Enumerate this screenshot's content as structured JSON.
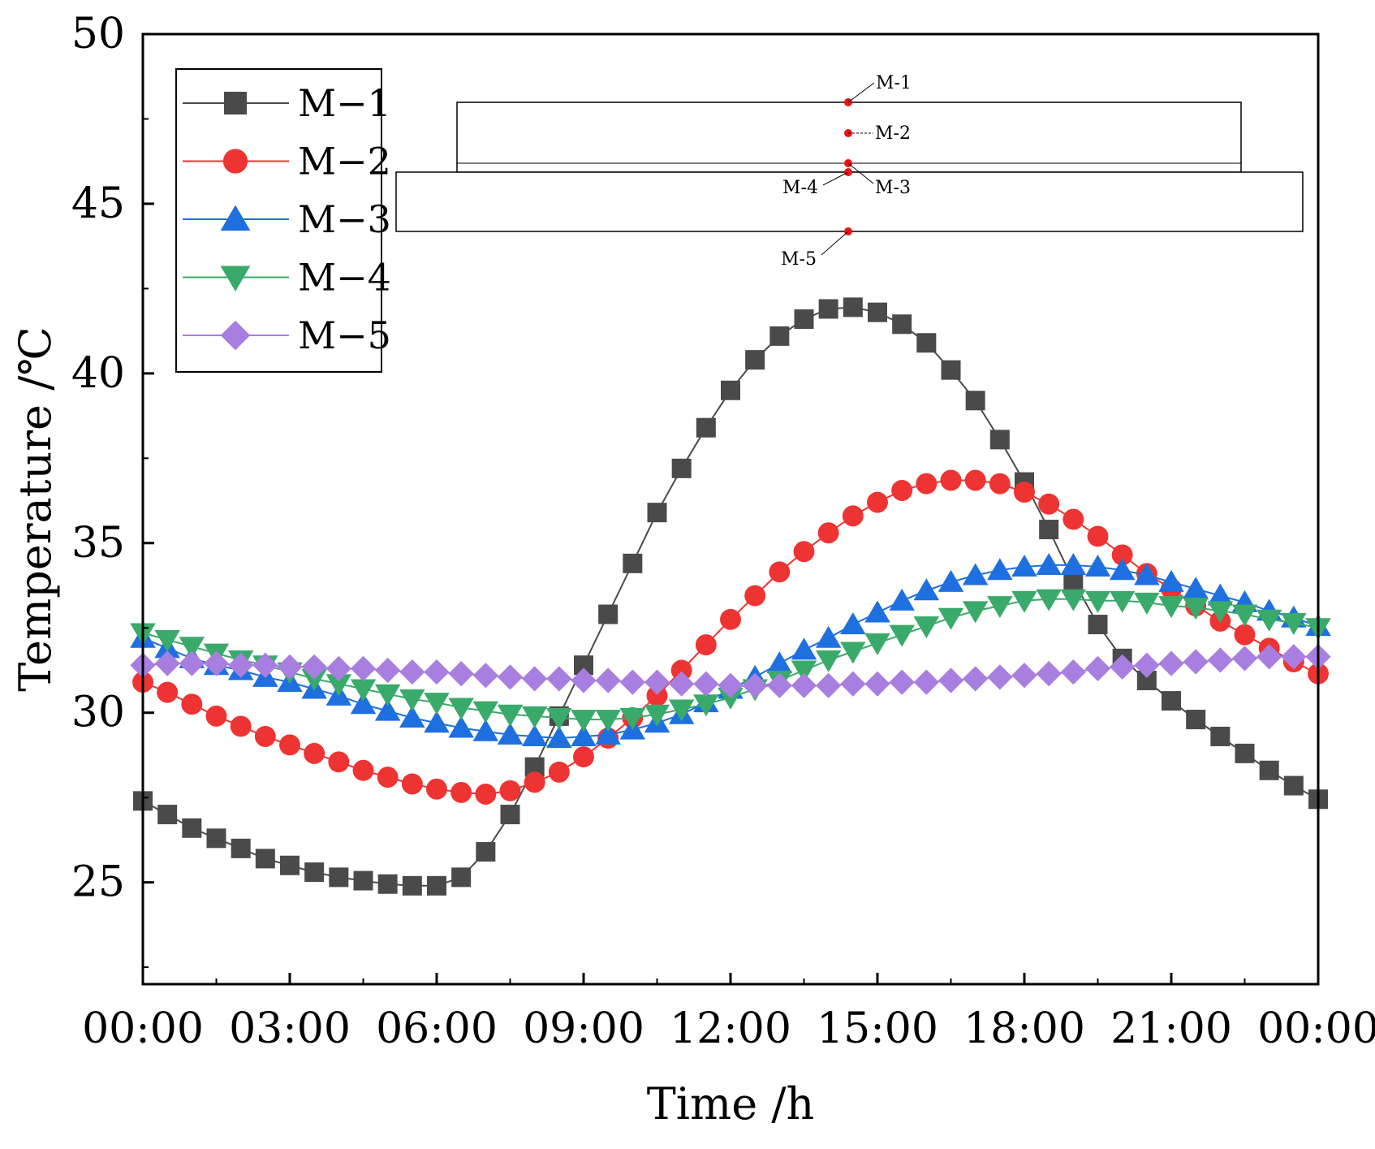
{
  "chart_data": {
    "type": "line",
    "title": "",
    "xlabel": "Time /h",
    "ylabel": "Temperature /℃",
    "x_ticks": [
      "00:00",
      "03:00",
      "06:00",
      "09:00",
      "12:00",
      "15:00",
      "18:00",
      "21:00",
      "00:00"
    ],
    "y_ticks": [
      "25",
      "30",
      "35",
      "40",
      "45",
      "50"
    ],
    "xlim": [
      0,
      24
    ],
    "ylim": [
      22,
      50
    ],
    "x": [
      0,
      0.5,
      1,
      1.5,
      2,
      2.5,
      3,
      3.5,
      4,
      4.5,
      5,
      5.5,
      6,
      6.5,
      7,
      7.5,
      8,
      8.5,
      9,
      9.5,
      10,
      10.5,
      11,
      11.5,
      12,
      12.5,
      13,
      13.5,
      14,
      14.5,
      15,
      15.5,
      16,
      16.5,
      17,
      17.5,
      18,
      18.5,
      19,
      19.5,
      20,
      20.5,
      21,
      21.5,
      22,
      22.5,
      23,
      23.5,
      24
    ],
    "series": [
      {
        "name": "M−1",
        "marker": "square",
        "color": "#4a4a4a",
        "values": [
          27.4,
          27.0,
          26.6,
          26.3,
          26.0,
          25.7,
          25.5,
          25.3,
          25.15,
          25.05,
          24.95,
          24.9,
          24.9,
          25.15,
          25.9,
          27.0,
          28.4,
          29.9,
          31.4,
          32.9,
          34.4,
          35.9,
          37.2,
          38.4,
          39.5,
          40.4,
          41.1,
          41.6,
          41.9,
          41.95,
          41.8,
          41.45,
          40.9,
          40.1,
          39.2,
          38.05,
          36.8,
          35.4,
          33.9,
          32.6,
          31.6,
          30.95,
          30.35,
          29.8,
          29.3,
          28.8,
          28.3,
          27.85,
          27.45
        ]
      },
      {
        "name": "M−2",
        "marker": "circle",
        "color": "#ee3333",
        "values": [
          30.9,
          30.6,
          30.25,
          29.9,
          29.6,
          29.3,
          29.05,
          28.8,
          28.55,
          28.3,
          28.1,
          27.9,
          27.75,
          27.65,
          27.6,
          27.7,
          27.95,
          28.25,
          28.7,
          29.25,
          29.85,
          30.5,
          31.25,
          32.0,
          32.75,
          33.45,
          34.15,
          34.75,
          35.3,
          35.8,
          36.2,
          36.55,
          36.75,
          36.85,
          36.85,
          36.75,
          36.5,
          36.15,
          35.7,
          35.2,
          34.65,
          34.1,
          33.65,
          33.15,
          32.7,
          32.3,
          31.9,
          31.5,
          31.15
        ]
      },
      {
        "name": "M−3",
        "marker": "triangle-up",
        "color": "#1e6fe0",
        "values": [
          32.2,
          31.9,
          31.6,
          31.4,
          31.25,
          31.05,
          30.9,
          30.7,
          30.5,
          30.25,
          30.05,
          29.85,
          29.7,
          29.55,
          29.45,
          29.35,
          29.3,
          29.25,
          29.3,
          29.35,
          29.5,
          29.7,
          29.95,
          30.3,
          30.7,
          31.05,
          31.45,
          31.85,
          32.2,
          32.6,
          32.95,
          33.3,
          33.6,
          33.85,
          34.05,
          34.2,
          34.3,
          34.35,
          34.35,
          34.3,
          34.2,
          34.05,
          33.85,
          33.65,
          33.45,
          33.25,
          33.0,
          32.8,
          32.55
        ]
      },
      {
        "name": "M−4",
        "marker": "triangle-down",
        "color": "#3aaa6a",
        "values": [
          32.35,
          32.15,
          31.95,
          31.75,
          31.55,
          31.4,
          31.2,
          31.0,
          30.85,
          30.7,
          30.55,
          30.4,
          30.3,
          30.15,
          30.05,
          29.95,
          29.9,
          29.85,
          29.8,
          29.8,
          29.85,
          29.95,
          30.1,
          30.25,
          30.45,
          30.7,
          30.95,
          31.25,
          31.55,
          31.8,
          32.05,
          32.3,
          32.55,
          32.8,
          33.0,
          33.15,
          33.3,
          33.35,
          33.35,
          33.3,
          33.3,
          33.25,
          33.15,
          33.1,
          33.0,
          32.9,
          32.75,
          32.65,
          32.5
        ]
      },
      {
        "name": "M−5",
        "marker": "diamond",
        "color": "#a87ee0",
        "values": [
          31.4,
          31.45,
          31.45,
          31.45,
          31.4,
          31.4,
          31.35,
          31.35,
          31.3,
          31.3,
          31.25,
          31.2,
          31.2,
          31.15,
          31.1,
          31.05,
          31.0,
          31.0,
          30.95,
          30.95,
          30.9,
          30.9,
          30.85,
          30.85,
          30.8,
          30.8,
          30.8,
          30.8,
          30.8,
          30.85,
          30.85,
          30.9,
          30.9,
          30.95,
          31.0,
          31.05,
          31.1,
          31.15,
          31.2,
          31.3,
          31.35,
          31.4,
          31.45,
          31.5,
          31.55,
          31.6,
          31.65,
          31.65,
          31.65
        ]
      }
    ],
    "legend_position": "top-left",
    "inset_labels": [
      "M-1",
      "M-2",
      "M-3",
      "M-4",
      "M-5"
    ]
  }
}
